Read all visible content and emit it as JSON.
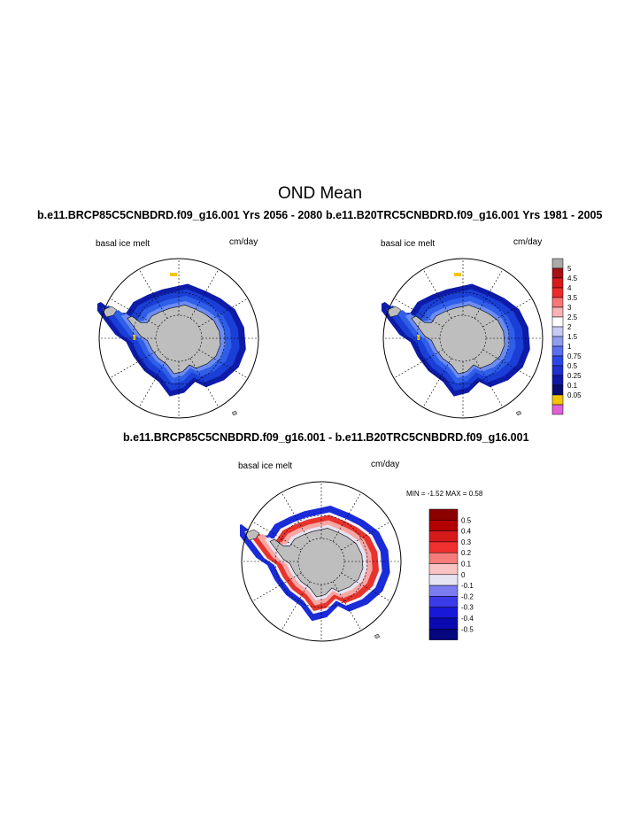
{
  "title": "OND Mean",
  "colors": {
    "land": "#bebebe",
    "ocean": "#ffffff",
    "ice_blue": "#1a3fd6",
    "ice_dark": "#0d1ba8",
    "ice_mid": "#2f5ee8",
    "ice_light": "#6d8cf2",
    "accent_yellow": "#f5c400",
    "diff_red": "#e8332d",
    "diff_pink": "#f6a7a4",
    "diff_pale": "#e6e3f3",
    "gridline": "#000000"
  },
  "panels": {
    "left": {
      "title": "b.e11.BRCP85C5CNBDRD.f09_g16.001  Yrs 2056 - 2080",
      "variable": "basal ice melt",
      "units": "cm/day"
    },
    "right": {
      "title": "b.e11.B20TRC5CNBDRD.f09_g16.001  Yrs 1981 - 2005",
      "variable": "basal ice melt",
      "units": "cm/day"
    },
    "diff": {
      "title": "b.e11.BRCP85C5CNBDRD.f09_g16.001 - b.e11.B20TRC5CNBDRD.f09_g16.001",
      "variable": "basal ice melt",
      "units": "cm/day",
      "minmax": "MIN =  -1.52 MAX =   0.58"
    }
  },
  "chart_data": [
    {
      "type": "heatmap",
      "projection": "south-polar-stereographic",
      "title": "b.e11.BRCP85C5CNBDRD.f09_g16.001  Yrs 2056 - 2080",
      "variable": "basal ice melt",
      "units": "cm/day",
      "description_levels": [
        0.05,
        0.1,
        0.25,
        0.5,
        0.75,
        1,
        1.5,
        2,
        2.5,
        3,
        3.5,
        4,
        4.5,
        5
      ]
    },
    {
      "type": "heatmap",
      "projection": "south-polar-stereographic",
      "title": "b.e11.B20TRC5CNBDRD.f09_g16.001  Yrs 1981 - 2005",
      "variable": "basal ice melt",
      "units": "cm/day",
      "colorbar": {
        "labels": [
          "5",
          "4.5",
          "4",
          "3.5",
          "3",
          "2.5",
          "2",
          "1.5",
          "1",
          "0.75",
          "0.5",
          "0.25",
          "0.1",
          "0.05"
        ],
        "colors": [
          "#a9a9a9",
          "#a50f15",
          "#d7191c",
          "#ee2a2a",
          "#f87676",
          "#fbb4b4",
          "#ffffff",
          "#c6cbf5",
          "#8f9cf0",
          "#5a6ef0",
          "#2c45e8",
          "#1f2fd0",
          "#0f18a5",
          "#080c6f",
          "#f5c400",
          "#e060d8"
        ]
      }
    },
    {
      "type": "heatmap",
      "projection": "south-polar-stereographic",
      "title": "b.e11.BRCP85C5CNBDRD.f09_g16.001 - b.e11.B20TRC5CNBDRD.f09_g16.001",
      "variable": "basal ice melt",
      "units": "cm/day",
      "min": -1.52,
      "max": 0.58,
      "colorbar": {
        "labels": [
          "0.5",
          "0.4",
          "0.3",
          "0.2",
          "0.1",
          "0",
          "-0.1",
          "-0.2",
          "-0.3",
          "-0.4",
          "-0.5"
        ],
        "colors": [
          "#8b0000",
          "#b30000",
          "#d7191c",
          "#f03030",
          "#f77b7b",
          "#fbc4c4",
          "#e6e3f3",
          "#7c7cf0",
          "#3a3ae8",
          "#1818d8",
          "#0a0ab0",
          "#06067f"
        ]
      }
    }
  ]
}
